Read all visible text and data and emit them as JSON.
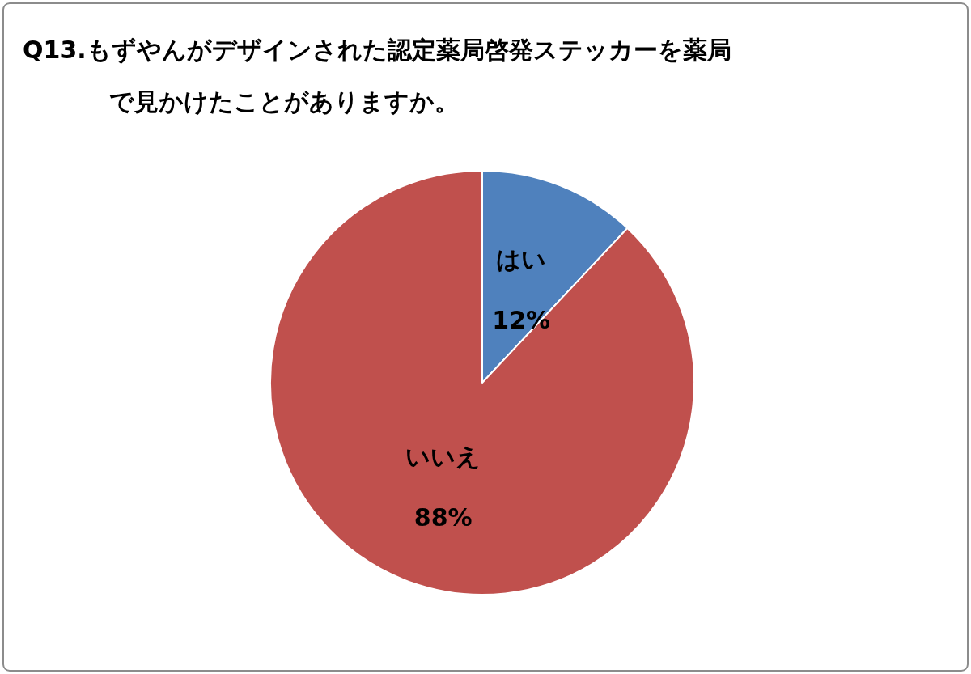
{
  "chart_data": {
    "type": "pie",
    "title": "Q13.もずやんがデザインされた認定薬局啓発ステッカーを薬局で見かけたことがありますか。",
    "categories": [
      "はい",
      "いいえ"
    ],
    "values": [
      12,
      88
    ],
    "colors": [
      "#4f81bd",
      "#c0504d"
    ],
    "value_labels": [
      "12%",
      "88%"
    ],
    "legend": false
  }
}
